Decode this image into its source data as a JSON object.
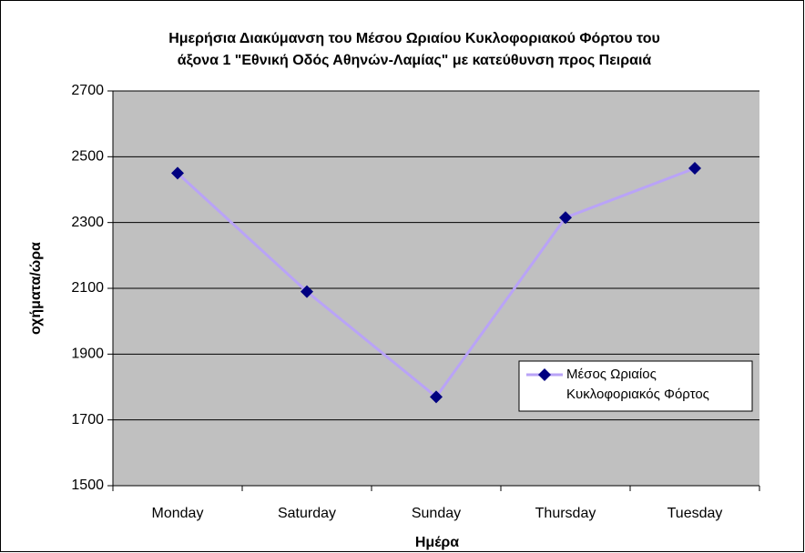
{
  "chart_data": {
    "type": "line",
    "title": [
      "Ημερήσια Διακύμανση του Μέσου Ωριαίου Κυκλοφοριακού Φόρτου του",
      "άξονα 1 \"Εθνική Οδός Αθηνών-Λαμίας\" με κατεύθυνση προς Πειραιά"
    ],
    "x_label": "Ημέρα",
    "y_label": "οχήματα/ώρα",
    "categories": [
      "Monday",
      "Saturday",
      "Sunday",
      "Thursday",
      "Tuesday"
    ],
    "series": [
      {
        "name": "Μέσος Ωριαίος Κυκλοφοριακός Φόρτος",
        "color": "#b9a3f7",
        "marker_color": "#000080",
        "values": [
          2450,
          2090,
          1770,
          2315,
          2465
        ]
      }
    ],
    "ylim": [
      1500,
      2700
    ],
    "yticks": [
      1500,
      1700,
      1900,
      2100,
      2300,
      2500,
      2700
    ],
    "grid": true,
    "legend": "right"
  }
}
